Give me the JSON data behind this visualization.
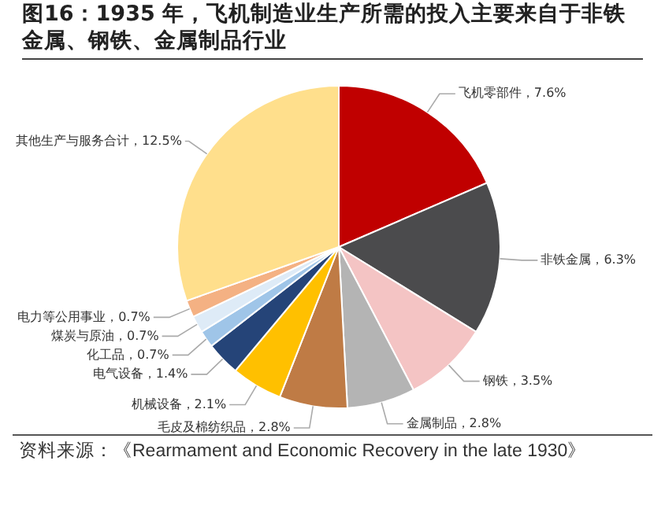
{
  "chart_data": {
    "type": "pie",
    "title": "图16：1935 年，飞机制造业生产所需的投入主要来自于非铁金属、钢铁、金属制品行业",
    "categories": [
      "飞机零部件",
      "非铁金属",
      "钢铁",
      "金属制品",
      "毛皮及棉纺织品",
      "机械设备",
      "电气设备",
      "化工品",
      "煤炭与原油",
      "电力等公用事业",
      "其他生产与服务合计"
    ],
    "values": [
      7.6,
      6.3,
      3.5,
      2.8,
      2.8,
      2.1,
      1.4,
      0.7,
      0.7,
      0.7,
      12.5
    ],
    "value_labels": [
      "7.6%",
      "6.3%",
      "3.5%",
      "2.8%",
      "2.8%",
      "2.1%",
      "1.4%",
      "0.7%",
      "0.7%",
      "0.7%",
      "12.5%"
    ],
    "colors": [
      "#c00000",
      "#4b4b4d",
      "#f4c4c4",
      "#b4b4b4",
      "#bf7b45",
      "#ffc000",
      "#254478",
      "#9fc5e8",
      "#deebf7",
      "#f4b183",
      "#ffdf8c"
    ],
    "legend": false,
    "annotations": [
      "资料来源：《Rearmament and Economic Recovery in the late 1930》"
    ]
  }
}
